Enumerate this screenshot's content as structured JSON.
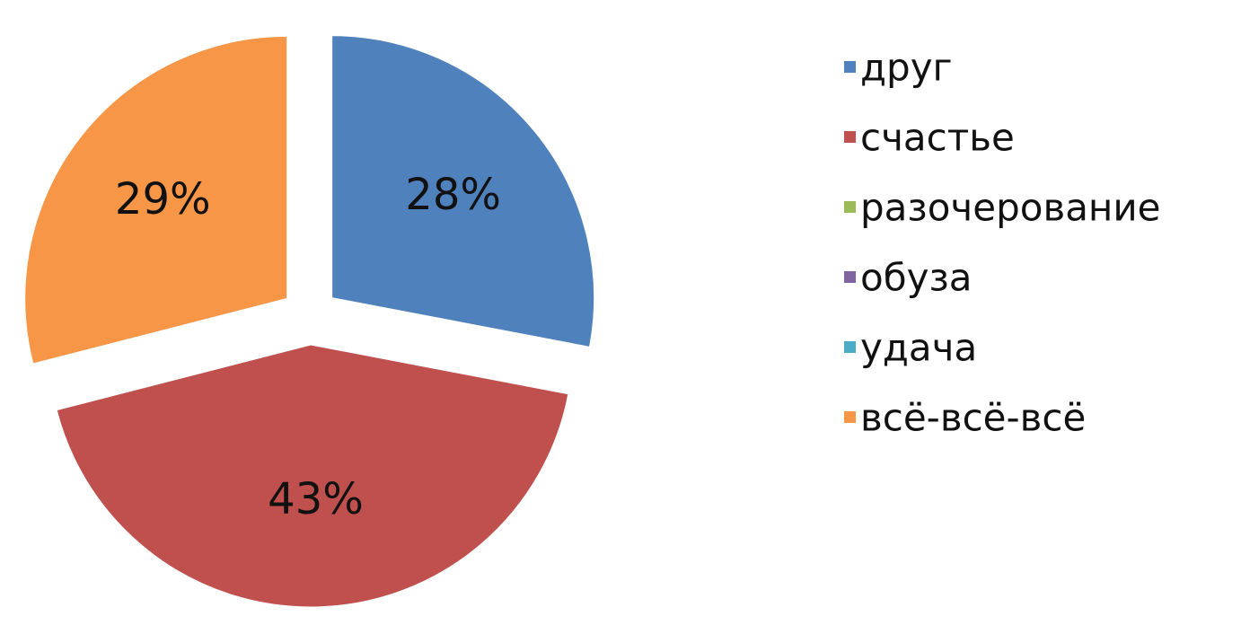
{
  "chart_data": {
    "type": "pie",
    "categories": [
      "друг",
      "счастье",
      "разочерование",
      "обуза",
      "удача",
      "всё-всё-всё"
    ],
    "values": [
      28,
      43,
      0,
      0,
      0,
      29
    ],
    "value_labels": [
      "28%",
      "43%",
      null,
      null,
      null,
      "29%"
    ],
    "colors": [
      "#4f81bd",
      "#c0504d",
      "#9bbb59",
      "#8064a2",
      "#4bacc6",
      "#f79646"
    ],
    "legend": "right"
  }
}
